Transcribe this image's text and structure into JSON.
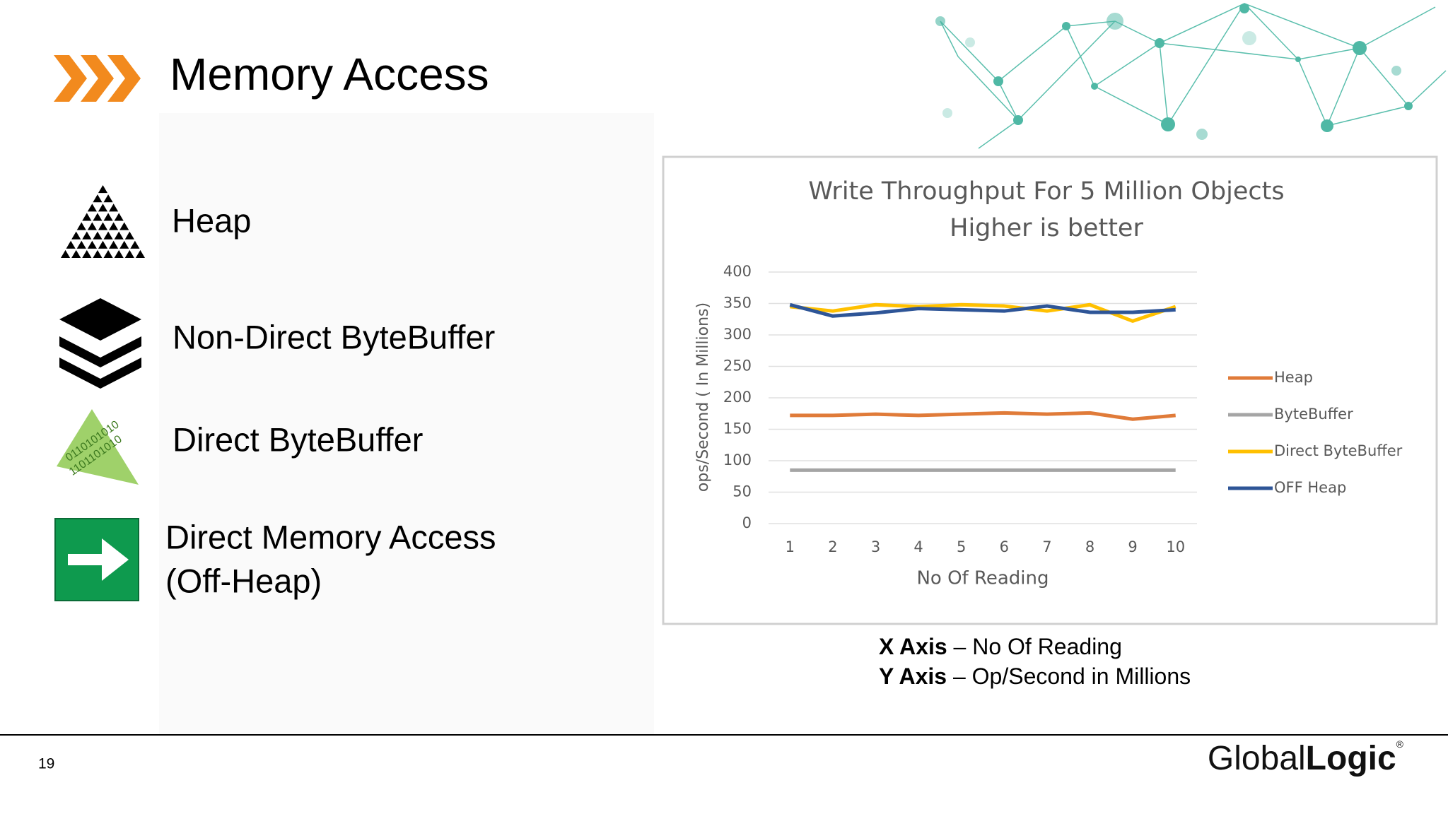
{
  "slide": {
    "title": "Memory Access",
    "items": [
      {
        "label": "Heap"
      },
      {
        "label": "Non-Direct ByteBuffer"
      },
      {
        "label": "Direct ByteBuffer"
      },
      {
        "lines": [
          "Direct Memory Access",
          "(Off-Heap)"
        ]
      }
    ],
    "axis_notes": [
      {
        "label": "X Axis",
        "text": "– No Of Reading"
      },
      {
        "label": "Y Axis",
        "text": "– Op/Second in Millions"
      }
    ],
    "page_number": "19",
    "logo": {
      "light": "Global",
      "bold": "Logic",
      "mark": "®"
    }
  },
  "chart_data": {
    "type": "line",
    "title": "Write Throughput For 5 Million Objects",
    "subtitle": "Higher is better",
    "x_label": "No Of Reading",
    "y_label": "ops/Second ( In Millions)",
    "categories": [
      "1",
      "2",
      "3",
      "4",
      "5",
      "6",
      "7",
      "8",
      "9",
      "10"
    ],
    "series": [
      {
        "name": "Heap",
        "color": "#e07b39",
        "values": [
          172,
          172,
          174,
          172,
          174,
          176,
          174,
          176,
          166,
          172
        ]
      },
      {
        "name": "ByteBuffer",
        "color": "#a5a5a5",
        "values": [
          85,
          85,
          85,
          85,
          85,
          85,
          85,
          85,
          85,
          85
        ]
      },
      {
        "name": "Direct ByteBuffer",
        "color": "#ffc000",
        "values": [
          345,
          338,
          348,
          345,
          348,
          346,
          338,
          348,
          322,
          345
        ]
      },
      {
        "name": "OFF Heap",
        "color": "#2e5597",
        "values": [
          348,
          330,
          335,
          342,
          340,
          338,
          346,
          336,
          336,
          340
        ]
      }
    ],
    "ylim": [
      0,
      400
    ],
    "yticks": [
      0,
      50,
      100,
      150,
      200,
      250,
      300,
      350,
      400
    ],
    "grid": true,
    "legend": "right"
  }
}
